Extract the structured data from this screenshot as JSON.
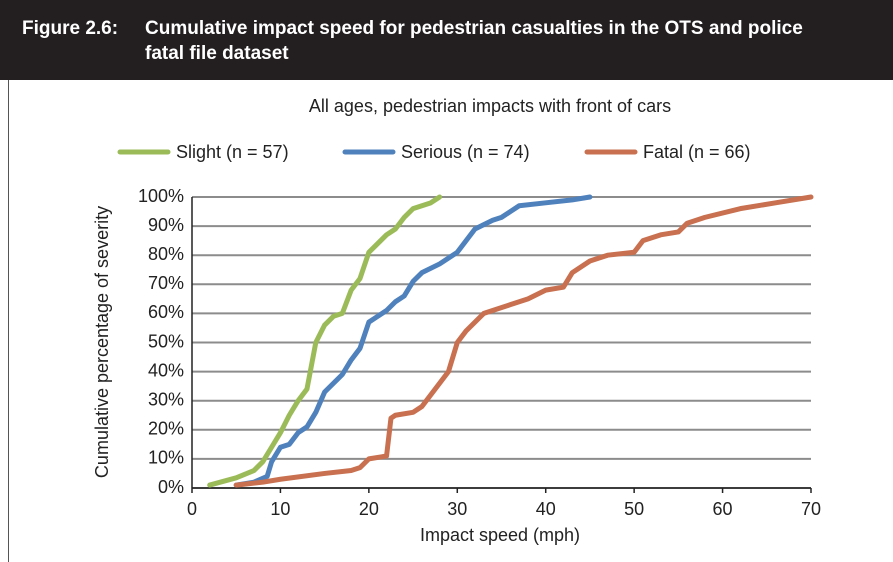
{
  "figure": {
    "label": "Figure 2.6:",
    "title": "Cumulative impact speed for pedestrian casualties in the OTS and police fatal file dataset"
  },
  "chart_data": {
    "type": "line",
    "subtitle": "All ages, pedestrian impacts with front of cars",
    "x_label": "Impact speed (mph)",
    "y_label": "Cumulative percentage of severity",
    "xlim": [
      0,
      70
    ],
    "xticks": [
      0,
      10,
      20,
      30,
      40,
      50,
      60,
      70
    ],
    "ylim": [
      0,
      100
    ],
    "yticks": [
      {
        "value": 0,
        "label": "0%"
      },
      {
        "value": 10,
        "label": "10%"
      },
      {
        "value": 20,
        "label": "20%"
      },
      {
        "value": 30,
        "label": "30%"
      },
      {
        "value": 40,
        "label": "40%"
      },
      {
        "value": 50,
        "label": "50%"
      },
      {
        "value": 60,
        "label": "60%"
      },
      {
        "value": 70,
        "label": "70%"
      },
      {
        "value": 80,
        "label": "80%"
      },
      {
        "value": 90,
        "label": "90%"
      },
      {
        "value": 100,
        "label": "100%"
      }
    ],
    "grid": true,
    "series": [
      {
        "name": "Slight (n = 57)",
        "color": "#9bbb59",
        "x": [
          2,
          5,
          7,
          8,
          9,
          10,
          11,
          12,
          13,
          14,
          15,
          16,
          17,
          18,
          19,
          20,
          21,
          22,
          23,
          24,
          25,
          27,
          28
        ],
        "values": [
          1,
          3.5,
          6,
          9,
          14,
          19,
          25,
          30,
          34,
          50,
          56,
          59,
          60,
          68,
          72,
          81,
          84,
          87,
          89,
          93,
          96,
          98,
          100
        ]
      },
      {
        "name": "Serious (n = 74)",
        "color": "#4f81bd",
        "x": [
          5,
          7,
          8.5,
          9,
          10,
          11,
          12,
          13,
          14,
          15,
          16,
          17,
          18,
          19,
          20,
          21,
          22,
          23,
          24,
          25,
          26,
          28,
          30,
          31,
          32,
          34,
          35,
          36,
          37,
          40,
          43,
          45
        ],
        "values": [
          1,
          2,
          4,
          9,
          14,
          15,
          19,
          21,
          26,
          33,
          36,
          39,
          44,
          48,
          57,
          59,
          61,
          64,
          66,
          71,
          74,
          77,
          81,
          85,
          89,
          92,
          93,
          95,
          97,
          98,
          99,
          100
        ]
      },
      {
        "name": "Fatal (n = 66)",
        "color": "#c8704f",
        "x": [
          5,
          8,
          10,
          15,
          18,
          19,
          20,
          22,
          22.5,
          23,
          25,
          26,
          27,
          28,
          29,
          30,
          31,
          33,
          36,
          38,
          40,
          42,
          43,
          45,
          47,
          50,
          51,
          53,
          55,
          56,
          58,
          62,
          66,
          70
        ],
        "values": [
          1,
          2,
          3,
          5,
          6,
          7,
          10,
          11,
          24,
          25,
          26,
          28,
          32,
          36,
          40,
          50,
          54,
          60,
          63,
          65,
          68,
          69,
          74,
          78,
          80,
          81,
          85,
          87,
          88,
          91,
          93,
          96,
          98,
          100
        ]
      }
    ]
  }
}
